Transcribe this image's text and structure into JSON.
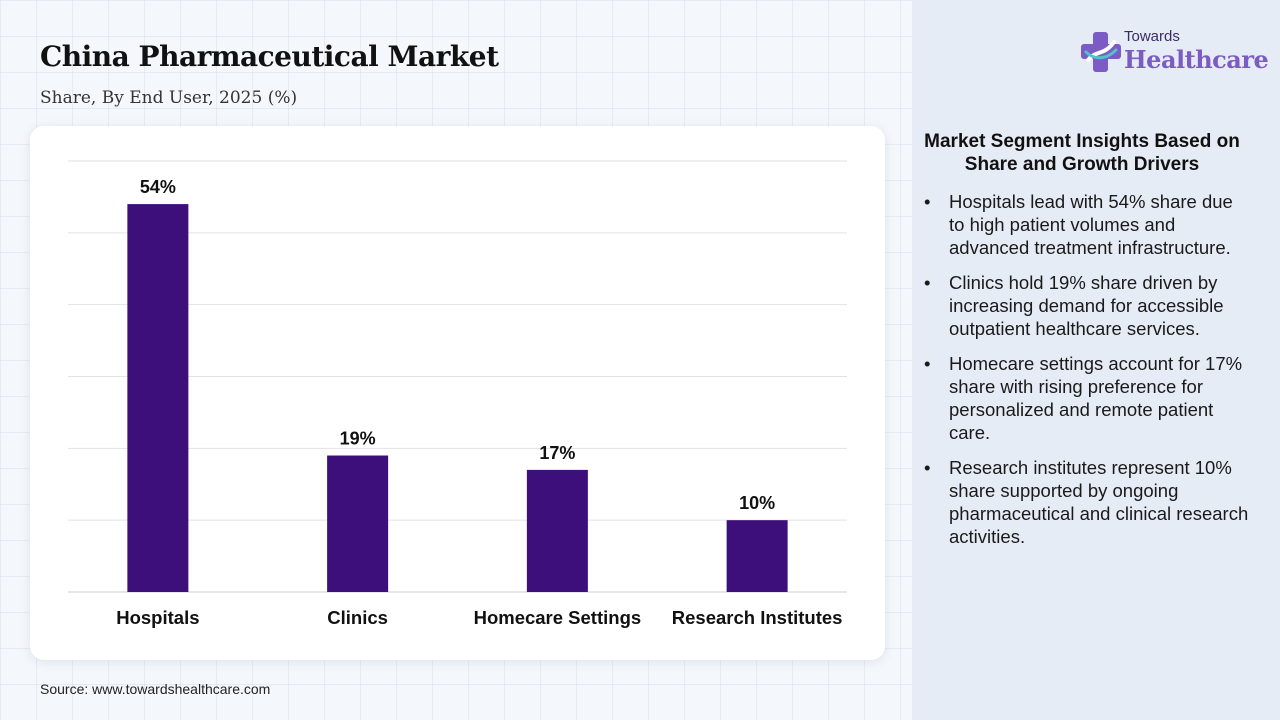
{
  "header": {
    "title": "China Pharmaceutical Market",
    "subtitle": "Share, By End User, 2025 (%)"
  },
  "logo": {
    "top_text": "Towards",
    "main_text": "Healthcare",
    "icon": "medical-cross-icon"
  },
  "chart_data": {
    "type": "bar",
    "title": "",
    "xlabel": "",
    "ylabel": "",
    "categories": [
      "Hospitals",
      "Clinics",
      "Homecare Settings",
      "Research Institutes"
    ],
    "values": [
      54,
      19,
      17,
      10
    ],
    "value_labels": [
      "54%",
      "19%",
      "17%",
      "10%"
    ],
    "ylim": [
      0,
      60
    ],
    "grid": true,
    "bar_color": "#3d0f7a"
  },
  "insights": {
    "title": "Market Segment Insights Based on Share and Growth Drivers",
    "items": [
      "Hospitals lead with 54% share due to high patient volumes and advanced treatment infrastructure.",
      "Clinics hold 19% share driven by increasing demand for accessible outpatient healthcare services.",
      "Homecare settings account for 17% share with rising preference for personalized and remote patient care.",
      "Research institutes represent 10% share supported by ongoing pharmaceutical and clinical research activities."
    ]
  },
  "footer": {
    "source": "Source: www.towardshealthcare.com"
  },
  "colors": {
    "bar": "#3d0f7a",
    "logo_accent": "#7c5cc4",
    "panel_bg": "#e6ecf5"
  }
}
